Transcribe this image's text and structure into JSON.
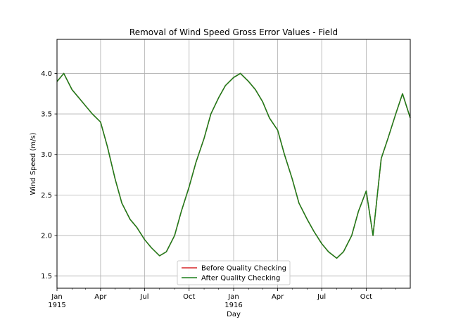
{
  "chart_data": {
    "type": "line",
    "title": "Removal of Wind Speed Gross Error Values - Field",
    "xlabel": "Day",
    "ylabel": "Wind Speed (m/s)",
    "xlim": [
      "1915-01-01",
      "1916-12-31"
    ],
    "ylim": [
      1.35,
      4.42
    ],
    "grid": true,
    "legend_position": "lower center",
    "x_ticks": [
      {
        "date": "1915-01-01",
        "label": "Jan",
        "sublabel": "1915"
      },
      {
        "date": "1915-04-01",
        "label": "Apr",
        "sublabel": ""
      },
      {
        "date": "1915-07-01",
        "label": "Jul",
        "sublabel": ""
      },
      {
        "date": "1915-10-01",
        "label": "Oct",
        "sublabel": ""
      },
      {
        "date": "1916-01-01",
        "label": "Jan",
        "sublabel": "1916"
      },
      {
        "date": "1916-04-01",
        "label": "Apr",
        "sublabel": ""
      },
      {
        "date": "1916-07-01",
        "label": "Jul",
        "sublabel": ""
      },
      {
        "date": "1916-10-01",
        "label": "Oct",
        "sublabel": ""
      }
    ],
    "y_ticks": [
      "1.5",
      "2.0",
      "2.5",
      "3.0",
      "3.5",
      "4.0"
    ],
    "series": [
      {
        "name": "Before Quality Checking",
        "color": "#d62728",
        "x": [
          "1915-01-01",
          "1915-01-15",
          "1915-02-01",
          "1915-02-15",
          "1915-03-01",
          "1915-03-15",
          "1915-04-01",
          "1915-04-15",
          "1915-05-01",
          "1915-05-15",
          "1915-06-01",
          "1915-06-15",
          "1915-07-01",
          "1915-07-15",
          "1915-08-01",
          "1915-08-15",
          "1915-09-01",
          "1915-09-15",
          "1915-10-01",
          "1915-10-15",
          "1915-11-01",
          "1915-11-15",
          "1915-12-01",
          "1915-12-15",
          "1916-01-01",
          "1916-01-15",
          "1916-02-01",
          "1916-02-15",
          "1916-03-01",
          "1916-03-15",
          "1916-04-01",
          "1916-04-15",
          "1916-05-01",
          "1916-05-15",
          "1916-06-01",
          "1916-06-15",
          "1916-07-01",
          "1916-07-15",
          "1916-08-01",
          "1916-08-15",
          "1916-09-01",
          "1916-09-15",
          "1916-10-01",
          "1916-10-15",
          "1916-11-01",
          "1916-11-15",
          "1916-12-01",
          "1916-12-15",
          "1916-12-31"
        ],
        "y": [
          3.9,
          4.0,
          3.8,
          3.7,
          3.6,
          3.5,
          3.4,
          3.1,
          2.7,
          2.4,
          2.2,
          2.1,
          1.95,
          1.85,
          1.75,
          1.8,
          2.0,
          2.3,
          2.6,
          2.9,
          3.2,
          3.5,
          3.7,
          3.85,
          3.95,
          4.0,
          3.9,
          3.8,
          3.65,
          3.45,
          3.3,
          3.0,
          2.7,
          2.4,
          2.2,
          2.05,
          1.9,
          1.8,
          1.72,
          1.8,
          2.0,
          2.3,
          2.55,
          2.0,
          2.95,
          3.2,
          3.5,
          3.75,
          3.45
        ]
      },
      {
        "name": "After Quality Checking",
        "color": "#1a7f1a",
        "x": [
          "1915-01-01",
          "1915-01-15",
          "1915-02-01",
          "1915-02-15",
          "1915-03-01",
          "1915-03-15",
          "1915-04-01",
          "1915-04-15",
          "1915-05-01",
          "1915-05-15",
          "1915-06-01",
          "1915-06-15",
          "1915-07-01",
          "1915-07-15",
          "1915-08-01",
          "1915-08-15",
          "1915-09-01",
          "1915-09-15",
          "1915-10-01",
          "1915-10-15",
          "1915-11-01",
          "1915-11-15",
          "1915-12-01",
          "1915-12-15",
          "1916-01-01",
          "1916-01-15",
          "1916-02-01",
          "1916-02-15",
          "1916-03-01",
          "1916-03-15",
          "1916-04-01",
          "1916-04-15",
          "1916-05-01",
          "1916-05-15",
          "1916-06-01",
          "1916-06-15",
          "1916-07-01",
          "1916-07-15",
          "1916-08-01",
          "1916-08-15",
          "1916-09-01",
          "1916-09-15",
          "1916-10-01",
          "1916-10-15",
          "1916-11-01",
          "1916-11-15",
          "1916-12-01",
          "1916-12-15",
          "1916-12-31"
        ],
        "y": [
          3.9,
          4.0,
          3.8,
          3.7,
          3.6,
          3.5,
          3.4,
          3.1,
          2.7,
          2.4,
          2.2,
          2.1,
          1.95,
          1.85,
          1.75,
          1.8,
          2.0,
          2.3,
          2.6,
          2.9,
          3.2,
          3.5,
          3.7,
          3.85,
          3.95,
          4.0,
          3.9,
          3.8,
          3.65,
          3.45,
          3.3,
          3.0,
          2.7,
          2.4,
          2.2,
          2.05,
          1.9,
          1.8,
          1.72,
          1.8,
          2.0,
          2.3,
          2.55,
          2.0,
          2.95,
          3.2,
          3.5,
          3.75,
          3.45
        ]
      }
    ]
  }
}
